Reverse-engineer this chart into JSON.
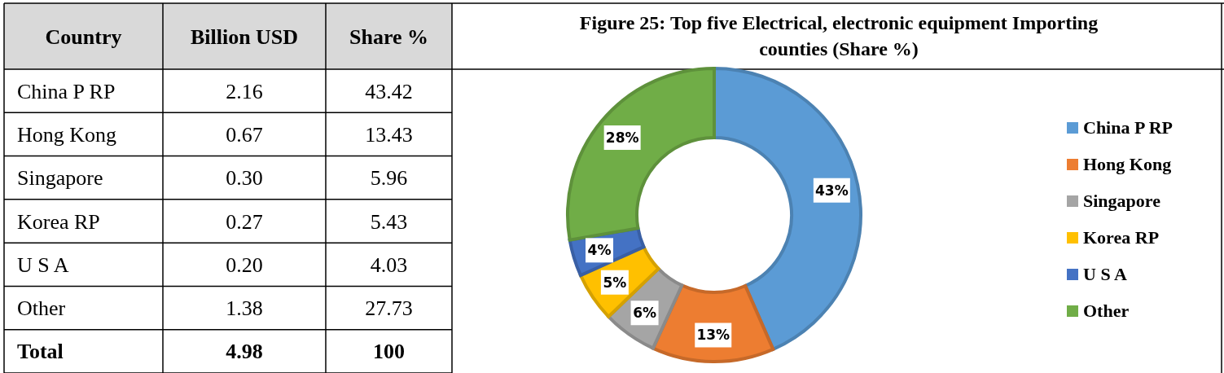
{
  "chart_data": [
    {
      "type": "other",
      "data_labels": true,
      "xlabel": "Country",
      "categories": [
        "China P RP",
        "Hong Kong",
        "Singapore",
        "Korea RP",
        "U S A",
        "Other",
        "Total"
      ],
      "series": [
        {
          "name": "Billion USD",
          "values": [
            2.16,
            0.67,
            0.3,
            0.27,
            0.2,
            1.38,
            4.98
          ],
          "value_labels": [
            "2.16",
            "0.67",
            "0.30",
            "0.27",
            "0.20",
            "1.38",
            "4.98"
          ]
        },
        {
          "name": "Share %",
          "values": [
            43.42,
            13.43,
            5.96,
            5.43,
            4.03,
            27.73,
            100
          ]
        }
      ]
    },
    {
      "type": "donut",
      "title": "Figure 25: Top five Electrical, electronic equipment Importing counties (Share %)",
      "categories": [
        "China P RP",
        "Hong Kong",
        "Singapore",
        "Korea RP",
        "U S A",
        "Other"
      ],
      "values": [
        43.42,
        13.43,
        5.96,
        5.43,
        4.03,
        27.73
      ],
      "colors": [
        "#5b9bd5",
        "#ed7d31",
        "#a5a5a5",
        "#ffc000",
        "#4472c4",
        "#70ad47"
      ],
      "value_labels": [
        "43%",
        "13%",
        "6%",
        "5%",
        "4%",
        "28%"
      ],
      "legend": "right"
    }
  ]
}
